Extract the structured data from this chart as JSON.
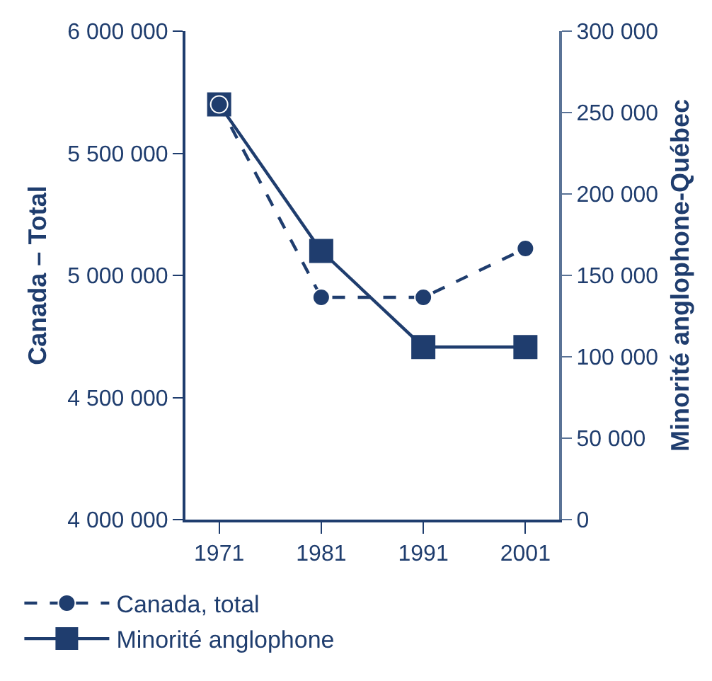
{
  "chart_data": {
    "type": "line",
    "categories": [
      "1971",
      "1981",
      "1991",
      "2001"
    ],
    "ylabel": "Canada – Total",
    "y2label": "Minorité anglophone-Québec",
    "ylim": [
      4000000,
      6000000
    ],
    "yticks": [
      {
        "value": 4000000,
        "label": "4 000 000"
      },
      {
        "value": 4500000,
        "label": "4 500 000"
      },
      {
        "value": 5000000,
        "label": "5 000 000"
      },
      {
        "value": 5500000,
        "label": "5 500 000"
      },
      {
        "value": 6000000,
        "label": "6 000 000"
      }
    ],
    "y2lim": [
      0,
      300000
    ],
    "y2ticks": [
      0,
      {
        "value": 50000,
        "label": "50 000"
      },
      {
        "value": 100000,
        "label": "100 000"
      },
      {
        "value": 150000,
        "label": "150 000"
      },
      {
        "value": 200000,
        "label": "200 000"
      },
      {
        "value": 250000,
        "label": "250 000"
      },
      {
        "value": 300000,
        "label": "300 000"
      }
    ],
    "legend": "bottom left",
    "series": [
      {
        "name": "Canada, total",
        "color": "#1f3d6e",
        "values": [
          5700000,
          4910000,
          4910000,
          5110000
        ],
        "marker": "circle",
        "line_style": "dashed"
      },
      {
        "name": "Minorité anglophone",
        "color": "#1f3d6e",
        "values": [
          255000,
          165000,
          106000,
          106000
        ],
        "marker": "square",
        "line_style": "solid",
        "axis": "y2"
      }
    ]
  }
}
